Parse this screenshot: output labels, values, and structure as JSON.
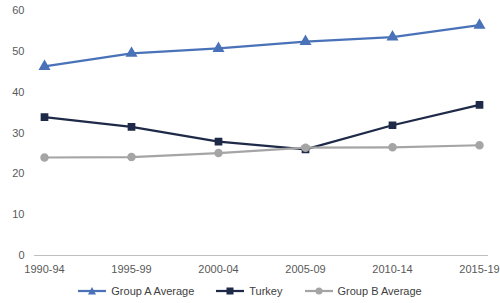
{
  "chart_data": {
    "type": "line",
    "categories": [
      "1990-94",
      "1995-99",
      "2000-04",
      "2005-09",
      "2010-14",
      "2015-19"
    ],
    "series": [
      {
        "name": "Group A Average",
        "color": "#4a72b8",
        "marker": "triangle",
        "values": [
          46.3,
          49.5,
          50.7,
          52.4,
          53.5,
          56.4
        ]
      },
      {
        "name": "Turkey",
        "color": "#1f2a48",
        "marker": "square",
        "values": [
          33.9,
          31.5,
          27.9,
          26.0,
          31.9,
          36.9
        ]
      },
      {
        "name": "Group B Average",
        "color": "#a5a5a5",
        "marker": "circle",
        "values": [
          24.0,
          24.1,
          25.1,
          26.4,
          26.5,
          27.0
        ]
      }
    ],
    "ylim": [
      0,
      60
    ],
    "yticks": [
      0,
      10,
      20,
      30,
      40,
      50,
      60
    ],
    "grid": false,
    "legend": "bottom"
  }
}
